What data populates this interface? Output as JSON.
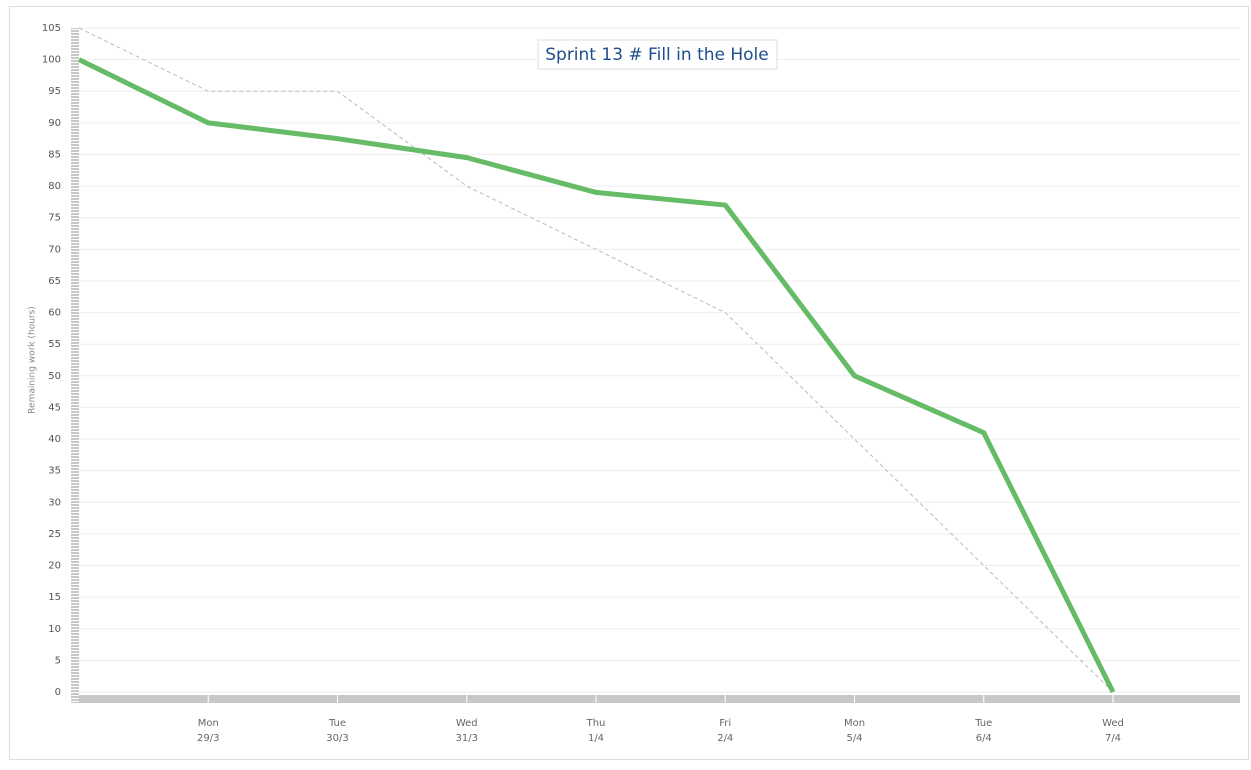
{
  "chart_data": {
    "type": "line",
    "title": "Sprint 13 # Fill in the Hole",
    "y_label": "Remaining work (hours)",
    "categories": [
      null,
      [
        "Mon",
        "29/3"
      ],
      [
        "Tue",
        "30/3"
      ],
      [
        "Wed",
        "31/3"
      ],
      [
        "Thu",
        "1/4"
      ],
      [
        "Fri",
        "2/4"
      ],
      [
        "Mon",
        "5/4"
      ],
      [
        "Tue",
        "6/4"
      ],
      [
        "Wed",
        "7/4"
      ]
    ],
    "series": [
      {
        "color": "#bbbbbb",
        "dashed": true,
        "width": 1,
        "values": [
          105,
          95,
          95,
          80,
          70,
          60,
          40,
          20,
          0
        ]
      },
      {
        "color": "#66bb66",
        "dashed": false,
        "width": 5,
        "values": [
          100,
          90,
          87.5,
          84.5,
          79,
          77,
          50,
          41,
          0
        ]
      }
    ],
    "ylim": [
      0,
      105
    ],
    "yticks": [
      0,
      5,
      10,
      15,
      20,
      25,
      30,
      35,
      40,
      45,
      50,
      55,
      60,
      65,
      70,
      75,
      80,
      85,
      90,
      95,
      100,
      105
    ],
    "grid": true
  }
}
